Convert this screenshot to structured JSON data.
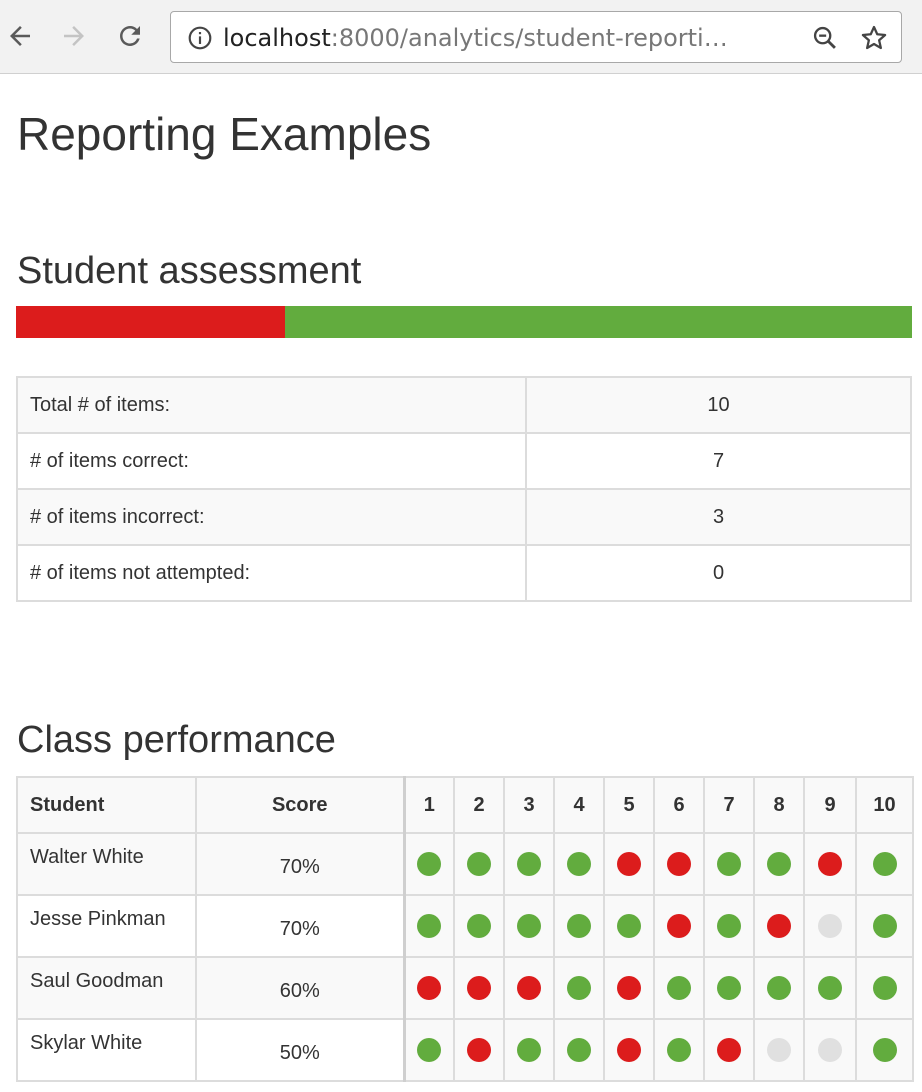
{
  "browser": {
    "url_host": "localhost",
    "url_rest": ":8000/analytics/student-reporti…"
  },
  "page": {
    "title": "Reporting Examples"
  },
  "student_assessment": {
    "heading": "Student assessment",
    "progress": {
      "incorrect_fraction": 0.3,
      "correct_fraction": 0.7,
      "incorrect_color": "#dc1c1c",
      "correct_color": "#62ac3e"
    },
    "rows": [
      {
        "label": "Total # of items:",
        "value": "10"
      },
      {
        "label": "# of items correct:",
        "value": "7"
      },
      {
        "label": "# of items incorrect:",
        "value": "3"
      },
      {
        "label": "# of items not attempted:",
        "value": "0"
      }
    ]
  },
  "class_performance": {
    "heading": "Class performance",
    "headers": {
      "student": "Student",
      "score": "Score",
      "items": [
        "1",
        "2",
        "3",
        "4",
        "5",
        "6",
        "7",
        "8",
        "9",
        "10"
      ]
    },
    "status_colors": {
      "correct": "#62ac3e",
      "incorrect": "#dc1c1c",
      "not_attempted": "#e0e0e0"
    },
    "students": [
      {
        "name": "Walter White",
        "score": "70%",
        "results": [
          "correct",
          "correct",
          "correct",
          "correct",
          "incorrect",
          "incorrect",
          "correct",
          "correct",
          "incorrect",
          "correct"
        ]
      },
      {
        "name": "Jesse Pinkman",
        "score": "70%",
        "results": [
          "correct",
          "correct",
          "correct",
          "correct",
          "correct",
          "incorrect",
          "correct",
          "incorrect",
          "not_attempted",
          "correct"
        ]
      },
      {
        "name": "Saul Goodman",
        "score": "60%",
        "results": [
          "incorrect",
          "incorrect",
          "incorrect",
          "correct",
          "incorrect",
          "correct",
          "correct",
          "correct",
          "correct",
          "correct"
        ]
      },
      {
        "name": "Skylar White",
        "score": "50%",
        "results": [
          "correct",
          "incorrect",
          "correct",
          "correct",
          "incorrect",
          "correct",
          "incorrect",
          "not_attempted",
          "not_attempted",
          "correct"
        ]
      }
    ]
  }
}
